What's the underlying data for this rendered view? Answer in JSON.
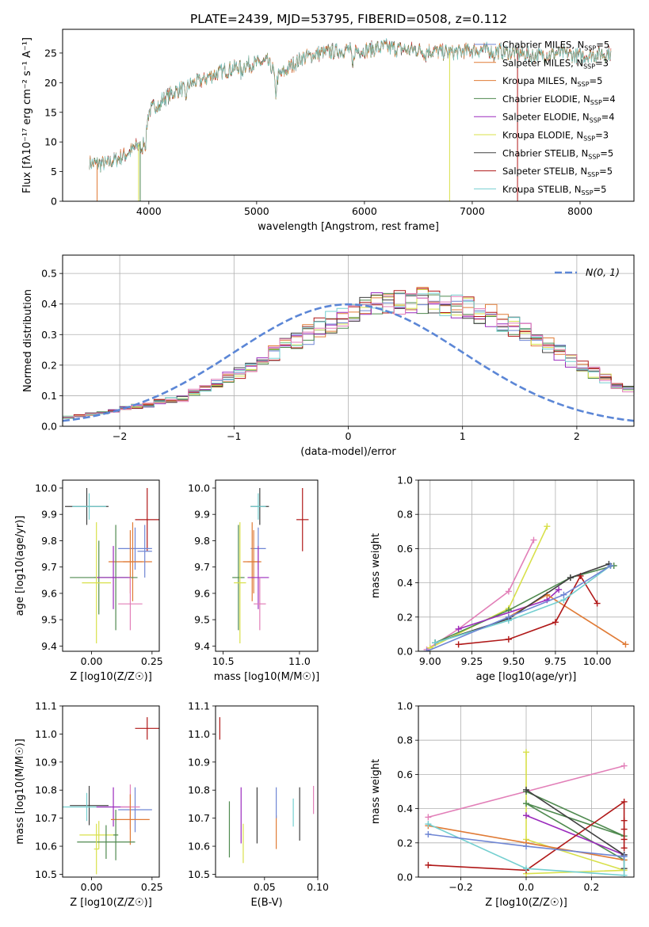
{
  "figure_title": "PLATE=2439, MJD=53795, FIBERID=0508, z=0.112",
  "colors": {
    "Chabrier MILES": "#6f86d4",
    "Salpeter MILES": "#e07b36",
    "Kroupa MILES": "#e07b36",
    "Chabrier ELODIE": "#4f8a4f",
    "Salpeter ELODIE": "#9b2bbd",
    "Kroupa ELODIE": "#d8e04a",
    "Chabrier STELIB": "#404040",
    "Salpeter STELIB": "#b01818",
    "Kroupa STELIB": "#74cfd0",
    "gaussian": "#5b86d6",
    "pink": "#e27fb8"
  },
  "chart_data": [
    {
      "id": "spectrum",
      "type": "line",
      "title": "PLATE=2439, MJD=53795, FIBERID=0508, z=0.112",
      "xlabel": "wavelength [Angstrom, rest frame]",
      "ylabel": "Flux [fλ10⁻¹⁷ erg cm⁻² s⁻¹ A⁻¹]",
      "xlim": [
        3200,
        8500
      ],
      "ylim": [
        0,
        29
      ],
      "xticks": [
        4000,
        5000,
        6000,
        7000,
        8000
      ],
      "yticks": [
        0,
        5,
        10,
        15,
        20,
        25
      ],
      "legend_location": "right",
      "legend": [
        "Chabrier MILES, NSSP=5",
        "Salpeter MILES, NSSP=3",
        "Kroupa MILES, NSSP=5",
        "Chabrier ELODIE, NSSP=4",
        "Salpeter ELODIE, NSSP=4",
        "Kroupa ELODIE, NSSP=3",
        "Chabrier STELIB, NSSP=5",
        "Salpeter STELIB, NSSP=5",
        "Kroupa STELIB, NSSP=5"
      ],
      "envelope_x": [
        3450,
        3600,
        3800,
        3900,
        3950,
        4000,
        4100,
        4200,
        4300,
        4500,
        4700,
        4900,
        5100,
        5200,
        5400,
        5600,
        5800,
        6000,
        6200,
        6400,
        6600,
        6800,
        7000,
        7200,
        7400,
        7600,
        7800,
        8000,
        8300
      ],
      "envelope_y": [
        6.5,
        6.2,
        8.0,
        9.5,
        11,
        15,
        17,
        18,
        19,
        20.5,
        22,
        23,
        23.5,
        21,
        24,
        25,
        25.5,
        25.5,
        26,
        25.5,
        25.5,
        25,
        25.5,
        25.5,
        25,
        24.5,
        25,
        24.5,
        25
      ]
    },
    {
      "id": "residuals",
      "type": "histogram",
      "xlabel": "(data-model)/error",
      "ylabel": "Normed distribution",
      "xlim": [
        -2.5,
        2.5
      ],
      "ylim": [
        0,
        0.56
      ],
      "xticks": [
        -2,
        -1,
        0,
        1,
        2
      ],
      "yticks": [
        0.0,
        0.1,
        0.2,
        0.3,
        0.4,
        0.5
      ],
      "legend": [
        "N(0, 1)"
      ],
      "bin_width": 0.1,
      "bin_start": -2.5,
      "base_values": [
        0.03,
        0.035,
        0.04,
        0.045,
        0.05,
        0.06,
        0.065,
        0.07,
        0.08,
        0.085,
        0.09,
        0.11,
        0.125,
        0.14,
        0.16,
        0.175,
        0.195,
        0.215,
        0.24,
        0.26,
        0.28,
        0.3,
        0.32,
        0.34,
        0.355,
        0.37,
        0.385,
        0.395,
        0.4,
        0.405,
        0.405,
        0.41,
        0.405,
        0.4,
        0.395,
        0.385,
        0.37,
        0.36,
        0.34,
        0.325,
        0.305,
        0.28,
        0.265,
        0.24,
        0.215,
        0.195,
        0.175,
        0.155,
        0.135,
        0.12,
        0.1,
        0.09,
        0.08,
        0.07,
        0.06,
        0.055,
        0.05,
        0.045,
        0.04,
        0.035
      ],
      "gaussian_series": "N(0,1)"
    },
    {
      "id": "age_vs_Z",
      "type": "scatter",
      "xlabel": "Z [log10(Z/Z☉)]",
      "ylabel": "age  [log10(age/yr)]",
      "xlim": [
        -0.12,
        0.28
      ],
      "ylim": [
        9.38,
        10.03
      ],
      "xticks": [
        0.0,
        0.25
      ],
      "yticks": [
        9.4,
        9.5,
        9.6,
        9.7,
        9.8,
        9.9,
        10.0
      ],
      "points": [
        {
          "x": -0.02,
          "y": 9.93,
          "xerr": 0.09,
          "yerr": 0.07,
          "color": "Chabrier STELIB"
        },
        {
          "x": -0.01,
          "y": 9.93,
          "xerr": 0.07,
          "yerr": 0.05,
          "color": "Kroupa STELIB"
        },
        {
          "x": 0.23,
          "y": 9.88,
          "xerr": 0.05,
          "yerr": 0.12,
          "color": "Salpeter STELIB"
        },
        {
          "x": 0.18,
          "y": 9.77,
          "xerr": 0.07,
          "yerr": 0.08,
          "color": "Chabrier MILES"
        },
        {
          "x": 0.16,
          "y": 9.72,
          "xerr": 0.09,
          "yerr": 0.12,
          "color": "Salpeter MILES"
        },
        {
          "x": 0.17,
          "y": 9.72,
          "xerr": 0.04,
          "yerr": 0.15,
          "color": "Kroupa MILES"
        },
        {
          "x": 0.03,
          "y": 9.66,
          "xerr": 0.12,
          "yerr": 0.14,
          "color": "Chabrier ELODIE"
        },
        {
          "x": 0.1,
          "y": 9.66,
          "xerr": 0.09,
          "yerr": 0.2,
          "color": "Chabrier ELODIE"
        },
        {
          "x": 0.09,
          "y": 9.66,
          "xerr": 0.07,
          "yerr": 0.12,
          "color": "Salpeter ELODIE"
        },
        {
          "x": 0.02,
          "y": 9.64,
          "xerr": 0.06,
          "yerr": 0.23,
          "color": "Kroupa ELODIE"
        },
        {
          "x": 0.16,
          "y": 9.56,
          "xerr": 0.05,
          "yerr": 0.1,
          "color": "pink"
        },
        {
          "x": 0.22,
          "y": 9.76,
          "xerr": 0.03,
          "yerr": 0.1,
          "color": "Chabrier MILES"
        }
      ]
    },
    {
      "id": "age_vs_mass",
      "type": "scatter",
      "xlabel": "mass [log10(M/M☉)]",
      "ylabel": "",
      "xlim": [
        10.45,
        11.12
      ],
      "ylim": [
        9.38,
        10.03
      ],
      "xticks": [
        10.5,
        11.0
      ],
      "yticks": [
        9.4,
        9.5,
        9.6,
        9.7,
        9.8,
        9.9,
        10.0
      ],
      "points": [
        {
          "x": 10.74,
          "y": 9.93,
          "xerr": 0.06,
          "yerr": 0.07,
          "color": "Chabrier STELIB"
        },
        {
          "x": 10.73,
          "y": 9.93,
          "xerr": 0.05,
          "yerr": 0.05,
          "color": "Kroupa STELIB"
        },
        {
          "x": 11.02,
          "y": 9.88,
          "xerr": 0.04,
          "yerr": 0.12,
          "color": "Salpeter STELIB"
        },
        {
          "x": 10.73,
          "y": 9.77,
          "xerr": 0.05,
          "yerr": 0.08,
          "color": "Chabrier MILES"
        },
        {
          "x": 10.69,
          "y": 9.72,
          "xerr": 0.06,
          "yerr": 0.15,
          "color": "Salpeter MILES"
        },
        {
          "x": 10.7,
          "y": 9.72,
          "xerr": 0.04,
          "yerr": 0.12,
          "color": "Kroupa MILES"
        },
        {
          "x": 10.6,
          "y": 9.66,
          "xerr": 0.04,
          "yerr": 0.2,
          "color": "Chabrier ELODIE"
        },
        {
          "x": 10.73,
          "y": 9.66,
          "xerr": 0.07,
          "yerr": 0.12,
          "color": "Salpeter ELODIE"
        },
        {
          "x": 10.61,
          "y": 9.64,
          "xerr": 0.04,
          "yerr": 0.23,
          "color": "Kroupa ELODIE"
        },
        {
          "x": 10.74,
          "y": 9.56,
          "xerr": 0.04,
          "yerr": 0.1,
          "color": "pink"
        }
      ]
    },
    {
      "id": "weight_vs_age",
      "type": "line",
      "xlabel": "age  [log10(age/yr)]",
      "ylabel": "mass weight",
      "xlim": [
        8.93,
        10.22
      ],
      "ylim": [
        0,
        1
      ],
      "xticks": [
        9.0,
        9.25,
        9.5,
        9.75,
        10.0
      ],
      "yticks": [
        0.0,
        0.2,
        0.4,
        0.6,
        0.8,
        1.0
      ],
      "series": [
        {
          "color": "pink",
          "x": [
            8.98,
            9.17,
            9.47,
            9.62
          ],
          "y": [
            0.01,
            0.13,
            0.35,
            0.65
          ]
        },
        {
          "color": "Kroupa ELODIE",
          "x": [
            9.0,
            9.47,
            9.7
          ],
          "y": [
            0.02,
            0.25,
            0.73
          ]
        },
        {
          "color": "Chabrier ELODIE",
          "x": [
            9.03,
            9.47,
            9.84,
            10.1
          ],
          "y": [
            0.05,
            0.24,
            0.43,
            0.5
          ]
        },
        {
          "color": "Salpeter ELODIE",
          "x": [
            9.17,
            9.7,
            9.77
          ],
          "y": [
            0.13,
            0.3,
            0.36
          ]
        },
        {
          "color": "Salpeter MILES",
          "x": [
            9.47,
            9.7,
            10.17
          ],
          "y": [
            0.2,
            0.33,
            0.04
          ]
        },
        {
          "color": "Salpeter STELIB",
          "x": [
            9.17,
            9.47,
            9.75,
            9.9,
            10.0
          ],
          "y": [
            0.04,
            0.07,
            0.17,
            0.44,
            0.28
          ]
        },
        {
          "color": "Chabrier STELIB",
          "x": [
            9.03,
            9.47,
            9.84,
            10.07
          ],
          "y": [
            0.05,
            0.19,
            0.43,
            0.51
          ]
        },
        {
          "color": "Kroupa STELIB",
          "x": [
            9.03,
            9.47,
            9.8,
            10.08
          ],
          "y": [
            0.05,
            0.18,
            0.3,
            0.5
          ]
        },
        {
          "color": "Chabrier MILES",
          "x": [
            8.98,
            9.47,
            9.8,
            10.08
          ],
          "y": [
            0.0,
            0.2,
            0.33,
            0.5
          ]
        }
      ]
    },
    {
      "id": "mass_vs_Z",
      "type": "scatter",
      "xlabel": "Z [log10(Z/Z☉)]",
      "ylabel": "mass [log10(M/M☉)]",
      "xlim": [
        -0.12,
        0.28
      ],
      "ylim": [
        10.49,
        11.1
      ],
      "xticks": [
        0.0,
        0.25
      ],
      "yticks": [
        10.5,
        10.6,
        10.7,
        10.8,
        10.9,
        11.0,
        11.1
      ],
      "points": [
        {
          "x": 0.23,
          "y": 11.02,
          "xerr": 0.05,
          "yerr": 0.04,
          "color": "Salpeter STELIB"
        },
        {
          "x": -0.01,
          "y": 10.745,
          "xerr": 0.08,
          "yerr": 0.07,
          "color": "Chabrier STELIB"
        },
        {
          "x": -0.02,
          "y": 10.74,
          "xerr": 0.1,
          "yerr": 0.05,
          "color": "Kroupa STELIB"
        },
        {
          "x": 0.09,
          "y": 10.74,
          "xerr": 0.07,
          "yerr": 0.07,
          "color": "Salpeter ELODIE"
        },
        {
          "x": 0.18,
          "y": 10.73,
          "xerr": 0.07,
          "yerr": 0.08,
          "color": "Chabrier MILES"
        },
        {
          "x": 0.16,
          "y": 10.74,
          "xerr": 0.04,
          "yerr": 0.08,
          "color": "pink"
        },
        {
          "x": 0.16,
          "y": 10.695,
          "xerr": 0.08,
          "yerr": 0.09,
          "color": "Salpeter MILES"
        },
        {
          "x": 0.03,
          "y": 10.64,
          "xerr": 0.08,
          "yerr": 0.05,
          "color": "Kroupa ELODIE"
        },
        {
          "x": 0.1,
          "y": 10.64,
          "xerr": 0.01,
          "yerr": 0.09,
          "color": "Chabrier ELODIE"
        },
        {
          "x": 0.06,
          "y": 10.615,
          "xerr": 0.12,
          "yerr": 0.06,
          "color": "Chabrier ELODIE"
        },
        {
          "x": 0.02,
          "y": 10.59,
          "xerr": 0.01,
          "yerr": 0.09,
          "color": "Kroupa ELODIE"
        }
      ]
    },
    {
      "id": "mass_vs_ebv",
      "type": "scatter",
      "xlabel": "E(B-V)",
      "ylabel": "",
      "xlim": [
        0.004,
        0.1
      ],
      "ylim": [
        10.49,
        11.1
      ],
      "xticks": [
        0.05,
        0.1
      ],
      "yticks": [
        10.5,
        10.6,
        10.7,
        10.8,
        10.9,
        11.0,
        11.1
      ],
      "points": [
        {
          "x": 0.008,
          "y": 11.02,
          "yerr": 0.04,
          "color": "Salpeter STELIB"
        },
        {
          "x": 0.017,
          "y": 10.66,
          "yerr": 0.1,
          "color": "Chabrier ELODIE"
        },
        {
          "x": 0.028,
          "y": 10.71,
          "yerr": 0.1,
          "color": "Salpeter ELODIE"
        },
        {
          "x": 0.03,
          "y": 10.61,
          "yerr": 0.07,
          "color": "Kroupa ELODIE"
        },
        {
          "x": 0.043,
          "y": 10.71,
          "yerr": 0.1,
          "color": "Chabrier STELIB"
        },
        {
          "x": 0.061,
          "y": 10.65,
          "yerr": 0.06,
          "color": "Salpeter MILES"
        },
        {
          "x": 0.061,
          "y": 10.755,
          "yerr": 0.055,
          "color": "Chabrier MILES"
        },
        {
          "x": 0.077,
          "y": 10.72,
          "yerr": 0.05,
          "color": "Kroupa STELIB"
        },
        {
          "x": 0.083,
          "y": 10.715,
          "yerr": 0.095,
          "color": "Chabrier STELIB"
        },
        {
          "x": 0.096,
          "y": 10.765,
          "yerr": 0.05,
          "color": "pink"
        }
      ]
    },
    {
      "id": "weight_vs_Z",
      "type": "line",
      "xlabel": "Z [log10(Z/Z☉)]",
      "ylabel": "mass weight",
      "xlim": [
        -0.33,
        0.33
      ],
      "ylim": [
        0,
        1
      ],
      "xticks": [
        -0.2,
        0.0,
        0.2
      ],
      "yticks": [
        0.0,
        0.2,
        0.4,
        0.6,
        0.8,
        1.0
      ],
      "series": [
        {
          "color": "pink",
          "x": [
            -0.3,
            0.0,
            0.3
          ],
          "y": [
            0.35,
            0.5,
            0.65
          ]
        },
        {
          "color": "Kroupa ELODIE",
          "x": [
            0.0,
            0.0,
            0.3,
            0.0
          ],
          "y": [
            0.73,
            0.22,
            0.04,
            0.02
          ]
        },
        {
          "color": "Chabrier ELODIE",
          "x": [
            0.0,
            0.3,
            0.0,
            0.3
          ],
          "y": [
            0.5,
            0.24,
            0.43,
            0.1
          ]
        },
        {
          "color": "Salpeter ELODIE",
          "x": [
            0.0,
            0.3
          ],
          "y": [
            0.36,
            0.13
          ]
        },
        {
          "color": "Salpeter MILES",
          "x": [
            -0.3,
            0.0,
            0.3
          ],
          "y": [
            0.3,
            0.2,
            0.1
          ]
        },
        {
          "color": "Salpeter STELIB",
          "x": [
            -0.3,
            0.0,
            0.3,
            0.3,
            0.3,
            0.3,
            0.3
          ],
          "y": [
            0.07,
            0.04,
            0.44,
            0.33,
            0.28,
            0.22,
            0.17
          ]
        },
        {
          "color": "Chabrier STELIB",
          "x": [
            0.0,
            0.3,
            0.3
          ],
          "y": [
            0.51,
            0.13,
            0.05
          ]
        },
        {
          "color": "Kroupa STELIB",
          "x": [
            -0.3,
            0.0,
            0.3,
            0.3
          ],
          "y": [
            0.31,
            0.05,
            0.01,
            0.12
          ]
        },
        {
          "color": "Chabrier MILES",
          "x": [
            -0.3,
            0.0,
            0.3
          ],
          "y": [
            0.25,
            0.18,
            0.12
          ]
        }
      ]
    }
  ]
}
